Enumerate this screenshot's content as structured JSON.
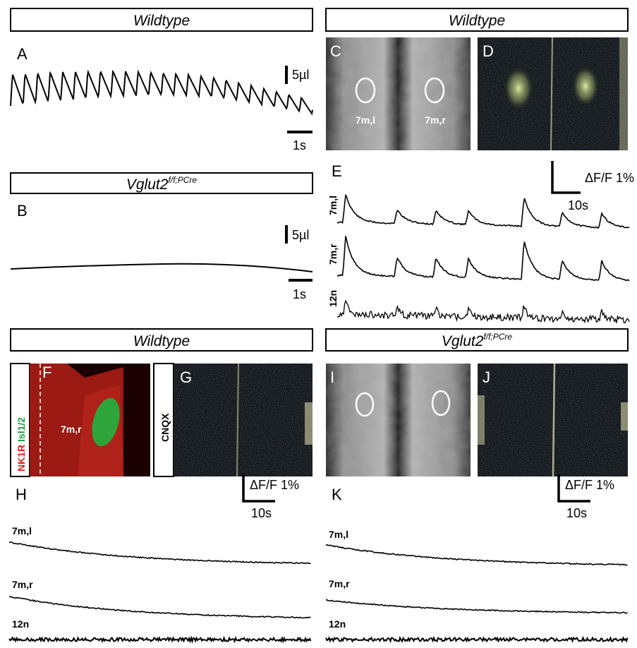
{
  "headers": {
    "top_left": "Wildtype",
    "top_right": "Wildtype",
    "middle_left": {
      "text": "Vglut2",
      "superscript": "f/f;PCre"
    },
    "bottom_left": "Wildtype",
    "bottom_right": {
      "text": "Vglut2",
      "superscript": "f/f;PCre"
    }
  },
  "panels": {
    "A": {
      "letter": "A",
      "scale_y": "5µl",
      "scale_x": "1s"
    },
    "B": {
      "letter": "B",
      "scale_y": "5µl",
      "scale_x": "1s"
    },
    "C": {
      "letter": "C",
      "roi_left": "7m,l",
      "roi_right": "7m,r"
    },
    "D": {
      "letter": "D"
    },
    "E": {
      "letter": "E",
      "scale_y": "ΔF/F 1%",
      "scale_x": "10s",
      "traces": [
        "7m,l",
        "7m,r",
        "12n"
      ]
    },
    "F": {
      "letter": "F",
      "stain_red": "NK1R",
      "stain_green": "Isl1/2",
      "roi": "7m,r"
    },
    "G": {
      "letter": "G",
      "condition": "CNQX"
    },
    "H": {
      "letter": "H",
      "scale_y": "ΔF/F 1%",
      "scale_x": "10s",
      "traces": [
        "7m,l",
        "7m,r",
        "12n"
      ]
    },
    "I": {
      "letter": "I"
    },
    "J": {
      "letter": "J"
    },
    "K": {
      "letter": "K",
      "scale_y": "ΔF/F 1%",
      "scale_x": "10s",
      "traces": [
        "7m,l",
        "7m,r",
        "12n"
      ]
    }
  }
}
